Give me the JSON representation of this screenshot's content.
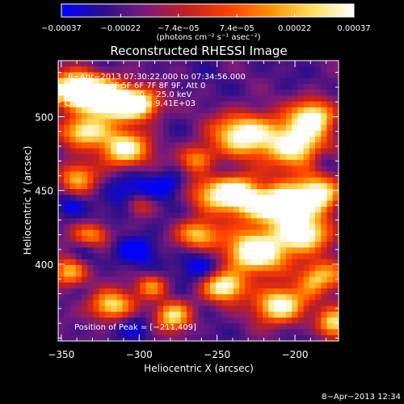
{
  "chart_data": {
    "type": "heatmap",
    "title": "Reconstructed RHESSI Image",
    "xlabel": "Heliocentric X (arcsec)",
    "ylabel": "Heliocentric Y (arcsec)",
    "xlim": [
      -352,
      -172
    ],
    "ylim": [
      348,
      538
    ],
    "x_ticks": [
      -350,
      -300,
      -250,
      -200
    ],
    "x_tick_labels": [
      "−350",
      "−300",
      "−250",
      "−200"
    ],
    "y_ticks": [
      400,
      450,
      500
    ],
    "y_tick_labels": [
      "400",
      "450",
      "500"
    ],
    "colorbar": {
      "range": [
        -0.00037,
        0.00037
      ],
      "ticks": [
        -0.00037,
        -0.00022,
        -7.4e-05,
        7.4e-05,
        0.00022,
        0.00037
      ],
      "tick_labels": [
        "−0.00037",
        "−0.00022",
        "−7.4e−05",
        "7.4e−05",
        "0.00022",
        "0.00037"
      ],
      "units": "(photons cm⁻² s⁻¹ asec⁻²)",
      "colormap": [
        "#0000ff",
        "#2a0f8a",
        "#7a1a7a",
        "#c02020",
        "#ff4000",
        "#ff9000",
        "#ffe060",
        "#ffffff"
      ]
    },
    "annotations": [
      "8−Apr−2013 07:30:22.000 to 07:34:56.000",
      "Detectors: 3F 5F 6F 7F 8F 9F, Att 0",
      "Energy Range: 12.0 − 25.0 keV",
      "Clean     Total Counts: 9.41E+03"
    ],
    "peak_label": "Position of Peak = [−211,409]",
    "peak_position": [
      -211,
      409
    ],
    "grid": false,
    "blobs": [
      [
        -340,
        518,
        22,
        12,
        1.0
      ],
      [
        -318,
        510,
        18,
        12,
        0.9
      ],
      [
        -300,
        508,
        14,
        10,
        0.75
      ],
      [
        -335,
        490,
        15,
        10,
        0.8
      ],
      [
        -310,
        478,
        16,
        12,
        0.85
      ],
      [
        -340,
        458,
        12,
        10,
        0.6
      ],
      [
        -262,
        470,
        12,
        10,
        0.6
      ],
      [
        -232,
        488,
        20,
        14,
        0.9
      ],
      [
        -200,
        480,
        18,
        16,
        0.85
      ],
      [
        -188,
        500,
        14,
        12,
        0.8
      ],
      [
        -242,
        448,
        22,
        12,
        0.95
      ],
      [
        -212,
        440,
        22,
        14,
        1.0
      ],
      [
        -185,
        448,
        14,
        12,
        0.85
      ],
      [
        -262,
        420,
        14,
        10,
        0.7
      ],
      [
        -225,
        408,
        20,
        14,
        1.0
      ],
      [
        -195,
        420,
        16,
        12,
        0.9
      ],
      [
        -245,
        385,
        14,
        10,
        0.85
      ],
      [
        -210,
        372,
        16,
        12,
        0.9
      ],
      [
        -182,
        390,
        14,
        12,
        0.85
      ],
      [
        -278,
        365,
        12,
        10,
        0.75
      ],
      [
        -318,
        372,
        14,
        10,
        0.75
      ],
      [
        -345,
        395,
        12,
        10,
        0.65
      ],
      [
        -330,
        420,
        12,
        8,
        0.55
      ],
      [
        -300,
        440,
        10,
        8,
        0.5
      ],
      [
        -292,
        385,
        10,
        8,
        0.55
      ],
      [
        -175,
        360,
        10,
        10,
        0.7
      ]
    ],
    "dips": [
      [
        -305,
        445,
        16,
        14,
        0.9
      ],
      [
        -278,
        455,
        12,
        10,
        0.7
      ],
      [
        -255,
        465,
        10,
        8,
        0.6
      ],
      [
        -220,
        452,
        10,
        8,
        0.7
      ],
      [
        -300,
        410,
        14,
        10,
        0.7
      ],
      [
        -262,
        398,
        14,
        12,
        0.8
      ],
      [
        -335,
        405,
        10,
        10,
        0.55
      ],
      [
        -180,
        385,
        8,
        10,
        0.8
      ],
      [
        -182,
        470,
        8,
        8,
        0.6
      ],
      [
        -300,
        360,
        14,
        10,
        0.5
      ],
      [
        -345,
        440,
        8,
        8,
        0.5
      ]
    ]
  },
  "timestamp": "8−Apr−2013 12:34"
}
